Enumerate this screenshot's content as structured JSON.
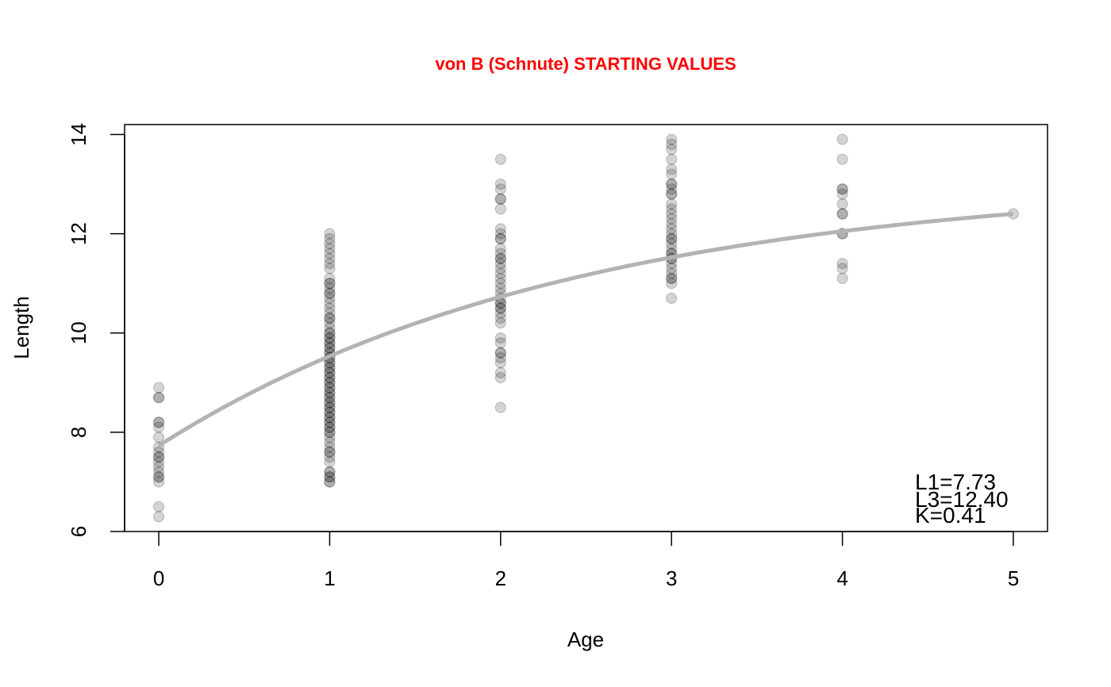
{
  "chart_data": {
    "type": "scatter",
    "title": "von B (Schnute) STARTING VALUES",
    "title_color": "#ff0000",
    "xlabel": "Age",
    "ylabel": "Length",
    "xlim": [
      -0.2,
      5.2
    ],
    "ylim": [
      6,
      14.2
    ],
    "x_ticks": [
      "0",
      "1",
      "2",
      "3",
      "4",
      "5"
    ],
    "y_ticks": [
      "6",
      "8",
      "10",
      "12",
      "14"
    ],
    "grid": false,
    "point_color": "#000000",
    "point_opacity": 0.17,
    "curve_color": "#b3b3b3",
    "points": [
      {
        "age": 0,
        "lengths": [
          8.9,
          8.7,
          8.7,
          8.2,
          8.2,
          8.1,
          7.9,
          7.7,
          7.6,
          7.5,
          7.5,
          7.4,
          7.3,
          7.2,
          7.1,
          7.1,
          7.0,
          6.5,
          6.3
        ]
      },
      {
        "age": 1,
        "lengths": [
          12.0,
          11.9,
          11.8,
          11.7,
          11.6,
          11.5,
          11.4,
          11.3,
          11.1,
          11.0,
          11.0,
          10.9,
          10.8,
          10.8,
          10.7,
          10.6,
          10.5,
          10.4,
          10.3,
          10.3,
          10.2,
          10.1,
          10.0,
          10.0,
          9.9,
          9.9,
          9.8,
          9.8,
          9.7,
          9.7,
          9.6,
          9.6,
          9.5,
          9.5,
          9.4,
          9.4,
          9.3,
          9.3,
          9.2,
          9.2,
          9.1,
          9.1,
          9.0,
          9.0,
          8.9,
          8.9,
          8.8,
          8.8,
          8.7,
          8.7,
          8.6,
          8.6,
          8.5,
          8.5,
          8.4,
          8.4,
          8.3,
          8.3,
          8.2,
          8.2,
          8.1,
          8.1,
          8.0,
          8.0,
          7.9,
          7.8,
          7.7,
          7.6,
          7.6,
          7.5,
          7.4,
          7.2,
          7.2,
          7.1,
          7.1,
          7.0,
          7.0
        ]
      },
      {
        "age": 2,
        "lengths": [
          13.5,
          13.0,
          12.9,
          12.7,
          12.7,
          12.5,
          12.1,
          12.0,
          11.9,
          11.9,
          11.7,
          11.6,
          11.5,
          11.5,
          11.4,
          11.3,
          11.2,
          11.1,
          11.0,
          10.9,
          10.8,
          10.7,
          10.6,
          10.6,
          10.5,
          10.5,
          10.4,
          10.3,
          10.2,
          9.9,
          9.8,
          9.6,
          9.6,
          9.5,
          9.4,
          9.2,
          9.1,
          8.5
        ]
      },
      {
        "age": 3,
        "lengths": [
          13.9,
          13.8,
          13.7,
          13.5,
          13.3,
          13.2,
          13.0,
          13.0,
          12.9,
          12.8,
          12.8,
          12.6,
          12.5,
          12.4,
          12.3,
          12.2,
          12.1,
          12.0,
          11.9,
          11.9,
          11.8,
          11.7,
          11.6,
          11.6,
          11.5,
          11.5,
          11.4,
          11.3,
          11.2,
          11.1,
          11.1,
          11.0,
          10.7
        ]
      },
      {
        "age": 4,
        "lengths": [
          13.9,
          13.5,
          12.9,
          12.9,
          12.8,
          12.6,
          12.4,
          12.4,
          12.0,
          12.0,
          11.4,
          11.3,
          11.1
        ]
      },
      {
        "age": 5,
        "lengths": [
          12.4
        ]
      }
    ],
    "curve": {
      "t1": 0,
      "t3": 5,
      "L1": 7.73,
      "L3": 12.4,
      "K": 0.41
    },
    "annotations": [
      "L1=7.73",
      "L3=12.40",
      "K=0.41"
    ]
  }
}
